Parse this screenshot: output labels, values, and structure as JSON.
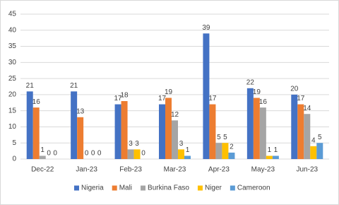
{
  "chart_data": {
    "type": "bar",
    "categories": [
      "Dec-22",
      "Jan-23",
      "Feb-23",
      "Mar-23",
      "Apr-23",
      "May-23",
      "Jun-23"
    ],
    "series": [
      {
        "name": "Nigeria",
        "color": "#4472c4",
        "values": [
          21,
          21,
          17,
          17,
          39,
          22,
          20
        ]
      },
      {
        "name": "Mali",
        "color": "#ed7d31",
        "values": [
          16,
          13,
          18,
          19,
          17,
          19,
          17
        ]
      },
      {
        "name": "Burkina Faso",
        "color": "#a5a5a5",
        "values": [
          1,
          0,
          3,
          12,
          5,
          16,
          14
        ]
      },
      {
        "name": "Niger",
        "color": "#ffc000",
        "values": [
          0,
          0,
          3,
          3,
          5,
          1,
          4
        ]
      },
      {
        "name": "Cameroon",
        "color": "#5b9bd5",
        "values": [
          0,
          0,
          0,
          1,
          2,
          1,
          5
        ]
      }
    ],
    "ylim": [
      0,
      45
    ],
    "yticks": [
      0,
      5,
      10,
      15,
      20,
      25,
      30,
      35,
      40,
      45
    ],
    "grid": true,
    "legend": "bottom"
  }
}
